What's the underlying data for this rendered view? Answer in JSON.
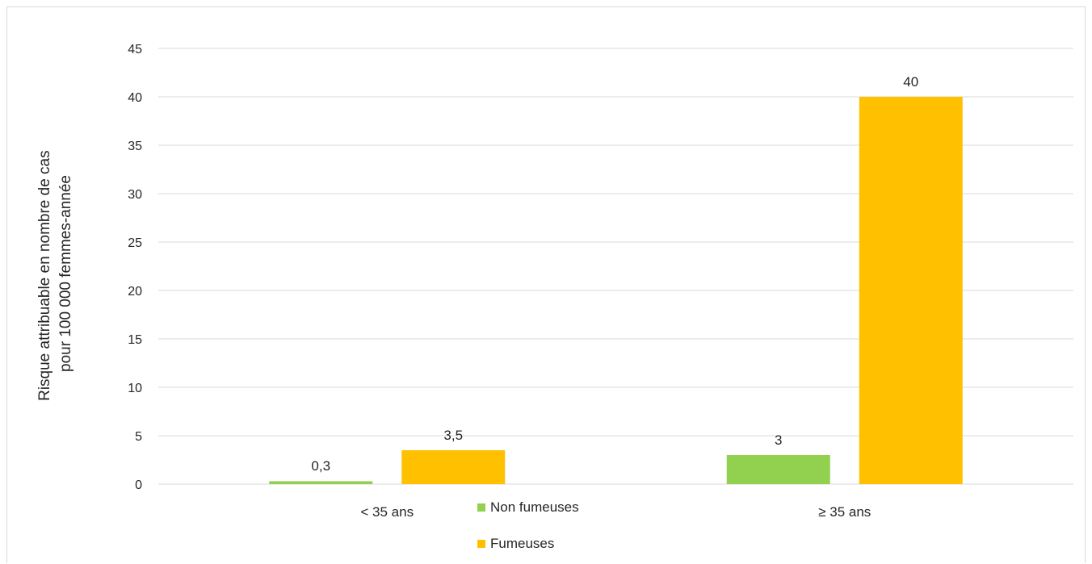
{
  "chart_data": {
    "type": "bar",
    "title": "",
    "xlabel": "",
    "ylabel_lines": [
      "Risque attribuable en nombre de cas",
      "pour 100 000 femmes-année"
    ],
    "categories": [
      "< 35 ans",
      "≥ 35 ans"
    ],
    "series": [
      {
        "name": "Non fumeuses",
        "color": "#92d050",
        "values": [
          0.3,
          3
        ],
        "labels": [
          "0,3",
          "3"
        ]
      },
      {
        "name": "Fumeuses",
        "color": "#ffc000",
        "values": [
          3.5,
          40
        ],
        "labels": [
          "3,5",
          "40"
        ]
      }
    ],
    "ylim": [
      0,
      45
    ],
    "yticks": [
      0,
      5,
      10,
      15,
      20,
      25,
      30,
      35,
      40,
      45
    ],
    "grid": true,
    "legend_position": "bottom-center"
  }
}
